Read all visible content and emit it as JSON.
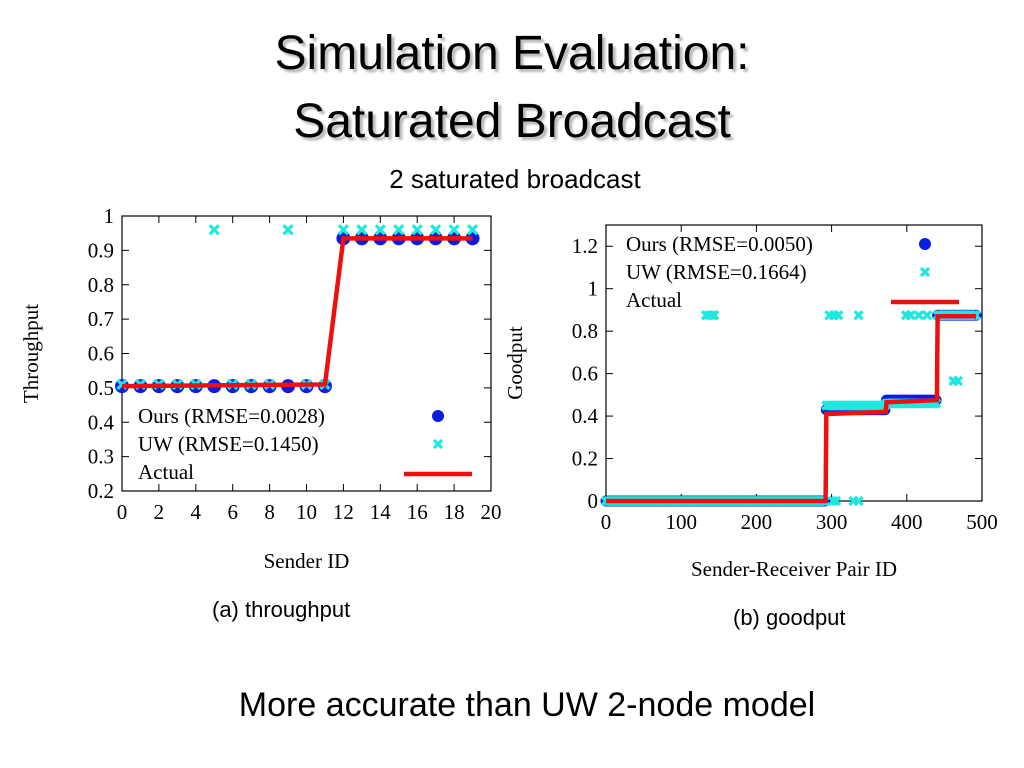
{
  "slide": {
    "title_line1": "Simulation Evaluation:",
    "title_line2": "Saturated Broadcast",
    "subtitle": "2 saturated broadcast",
    "caption_a": "(a) throughput",
    "caption_b": "(b) goodput",
    "conclusion": "More accurate than UW 2-node model"
  },
  "colors": {
    "ours": "#0a1de0",
    "uw": "#1ee8e0",
    "actual": "#ec1010"
  },
  "chart_data": [
    {
      "type": "scatter",
      "title": "",
      "xlabel": "Sender ID",
      "ylabel": "Throughput",
      "xlim": [
        0,
        20
      ],
      "ylim": [
        0.2,
        1
      ],
      "xticks": [
        0,
        2,
        4,
        6,
        8,
        10,
        12,
        14,
        16,
        18,
        20
      ],
      "yticks": [
        0.2,
        0.3,
        0.4,
        0.5,
        0.6,
        0.7,
        0.8,
        0.9,
        1
      ],
      "legend_position": "bottom-right",
      "series": [
        {
          "name": "Ours (RMSE=0.0028)",
          "marker": "circle",
          "x": [
            0,
            1,
            2,
            3,
            4,
            5,
            6,
            7,
            8,
            9,
            10,
            11,
            12,
            13,
            14,
            15,
            16,
            17,
            18,
            19
          ],
          "y": [
            0.505,
            0.505,
            0.505,
            0.505,
            0.505,
            0.505,
            0.505,
            0.505,
            0.505,
            0.505,
            0.505,
            0.505,
            0.935,
            0.935,
            0.935,
            0.935,
            0.935,
            0.935,
            0.935,
            0.935
          ]
        },
        {
          "name": "UW (RMSE=0.1450)",
          "marker": "x",
          "x": [
            0,
            1,
            2,
            3,
            4,
            5,
            6,
            7,
            8,
            9,
            10,
            11,
            12,
            13,
            14,
            15,
            16,
            17,
            18,
            19
          ],
          "y": [
            0.51,
            0.51,
            0.51,
            0.51,
            0.51,
            0.96,
            0.51,
            0.51,
            0.51,
            0.96,
            0.51,
            0.51,
            0.96,
            0.96,
            0.96,
            0.96,
            0.96,
            0.96,
            0.96,
            0.96
          ]
        },
        {
          "name": "Actual",
          "marker": "line",
          "x": [
            0,
            11,
            12,
            19
          ],
          "y": [
            0.505,
            0.51,
            0.935,
            0.935
          ]
        }
      ]
    },
    {
      "type": "scatter",
      "title": "",
      "xlabel": "Sender-Receiver Pair ID",
      "ylabel": "Goodput",
      "xlim": [
        0,
        500
      ],
      "ylim": [
        0,
        1.3
      ],
      "xticks": [
        0,
        100,
        200,
        300,
        400,
        500
      ],
      "yticks": [
        0,
        0.2,
        0.4,
        0.6,
        0.8,
        1,
        1.2
      ],
      "legend_position": "top-right",
      "series": [
        {
          "name": "Ours (RMSE=0.0050)",
          "marker": "circle",
          "segments": [
            {
              "x_range": [
                0,
                292
              ],
              "y": 0.0
            },
            {
              "x_range": [
                293,
                372
              ],
              "y": 0.43
            },
            {
              "x_range": [
                373,
                440
              ],
              "y": 0.475
            },
            {
              "x_range": [
                441,
                492
              ],
              "y": 0.875
            }
          ]
        },
        {
          "name": "UW (RMSE=0.1664)",
          "marker": "x",
          "segments": [
            {
              "x_range": [
                0,
                292
              ],
              "y": 0.0
            },
            {
              "x_range": [
                293,
                372
              ],
              "y": 0.45
            },
            {
              "x_range": [
                373,
                440
              ],
              "y": 0.46
            },
            {
              "x_range": [
                441,
                492
              ],
              "y": 0.875
            }
          ],
          "extra_points": [
            {
              "x": 133,
              "y": 0.875
            },
            {
              "x": 137,
              "y": 0.875
            },
            {
              "x": 141,
              "y": 0.875
            },
            {
              "x": 144,
              "y": 0.875
            },
            {
              "x": 297,
              "y": 0.875
            },
            {
              "x": 303,
              "y": 0.875
            },
            {
              "x": 309,
              "y": 0.875
            },
            {
              "x": 336,
              "y": 0.875
            },
            {
              "x": 399,
              "y": 0.875
            },
            {
              "x": 405,
              "y": 0.875
            },
            {
              "x": 416,
              "y": 0.875
            },
            {
              "x": 427,
              "y": 0.875
            },
            {
              "x": 302,
              "y": 0.0
            },
            {
              "x": 306,
              "y": 0.0
            },
            {
              "x": 329,
              "y": 0.0
            },
            {
              "x": 336,
              "y": 0.0
            },
            {
              "x": 462,
              "y": 0.565
            },
            {
              "x": 468,
              "y": 0.565
            }
          ]
        },
        {
          "name": "Actual",
          "marker": "line",
          "x": [
            0,
            292,
            293,
            372,
            373,
            440,
            441,
            492
          ],
          "y": [
            0.0,
            0.0,
            0.41,
            0.42,
            0.465,
            0.475,
            0.87,
            0.87
          ]
        }
      ]
    }
  ]
}
